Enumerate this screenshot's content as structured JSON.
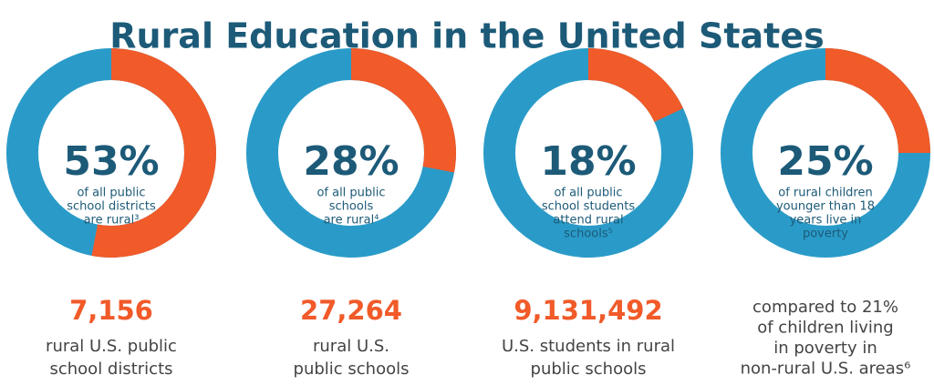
{
  "title": "Rural Education in the United States",
  "chart_data": [
    {
      "type": "donut",
      "values": [
        53
      ],
      "value_labels": [
        "53%"
      ],
      "color": "#f15a29",
      "base_color": "#2a9bc8",
      "caption": [
        "of all public",
        "school districts",
        "are rural³"
      ],
      "stat": "7,156",
      "stat_text": [
        "rural U.S. public",
        "school districts"
      ]
    },
    {
      "type": "donut",
      "values": [
        28
      ],
      "value_labels": [
        "28%"
      ],
      "color": "#f15a29",
      "base_color": "#2a9bc8",
      "caption": [
        "of all public",
        "schools",
        "are rural⁴"
      ],
      "stat": "27,264",
      "stat_text": [
        "rural U.S.",
        "public schools"
      ]
    },
    {
      "type": "donut",
      "values": [
        18
      ],
      "value_labels": [
        "18%"
      ],
      "color": "#f15a29",
      "base_color": "#2a9bc8",
      "caption": [
        "of all public",
        "school students",
        "attend rural",
        "schools⁵"
      ],
      "stat": "9,131,492",
      "stat_text": [
        "U.S. students in rural",
        "public schools"
      ]
    },
    {
      "type": "donut",
      "values": [
        25
      ],
      "value_labels": [
        "25%"
      ],
      "color": "#f15a29",
      "base_color": "#2a9bc8",
      "caption": [
        "of rural children",
        "younger than 18",
        "years live in",
        "poverty"
      ],
      "stat_text": [
        "compared to 21%",
        "of children living",
        "in poverty in",
        "non-rural U.S. areas⁶"
      ]
    }
  ]
}
